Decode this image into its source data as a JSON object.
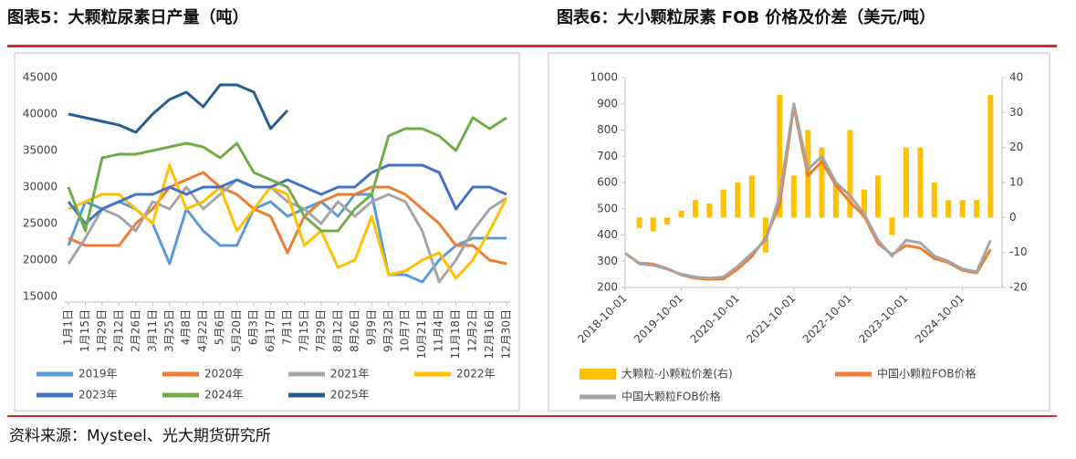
{
  "chart_data": [
    {
      "type": "line",
      "title": "图表5：大颗粒尿素日产量（吨）",
      "categories": [
        "1月1日",
        "1月15日",
        "1月29日",
        "2月12日",
        "2月26日",
        "3月11日",
        "3月25日",
        "4月8日",
        "4月22日",
        "5月6日",
        "5月20日",
        "6月3日",
        "6月17日",
        "7月1日",
        "7月15日",
        "7月29日",
        "8月12日",
        "8月26日",
        "9月9日",
        "9月23日",
        "10月7日",
        "10月21日",
        "11月4日",
        "11月18日",
        "12月2日",
        "12月16日",
        "12月30日"
      ],
      "ylim": [
        15000,
        45000
      ],
      "yticks": [
        15000,
        20000,
        25000,
        30000,
        35000,
        40000,
        45000
      ],
      "grid": false,
      "series": [
        {
          "name": "2019年",
          "color": "#5b9bd5",
          "values": [
            22000,
            28000,
            27000,
            28000,
            27000,
            25000,
            19500,
            27000,
            24000,
            22000,
            22000,
            27000,
            28000,
            26000,
            27000,
            28000,
            26000,
            29000,
            29000,
            18000,
            18000,
            17000,
            20000,
            22000,
            23000,
            23000,
            23000
          ]
        },
        {
          "name": "2020年",
          "color": "#ed7d31",
          "values": [
            23000,
            22000,
            22000,
            22000,
            25000,
            27000,
            30000,
            31000,
            32000,
            30000,
            29000,
            27000,
            26000,
            21000,
            26000,
            28000,
            29000,
            29000,
            30000,
            30000,
            29000,
            27000,
            25000,
            22000,
            22000,
            20000,
            19500
          ]
        },
        {
          "name": "2021年",
          "color": "#a5a5a5",
          "values": [
            19500,
            23000,
            27000,
            26000,
            24000,
            28000,
            27000,
            30000,
            27000,
            29000,
            31000,
            30000,
            30000,
            28000,
            27000,
            25000,
            28000,
            26000,
            28000,
            29000,
            28000,
            24000,
            17000,
            20000,
            24000,
            27000,
            28500
          ]
        },
        {
          "name": "2022年",
          "color": "#ffc000",
          "values": [
            27000,
            28000,
            29000,
            29000,
            27000,
            25000,
            33000,
            27000,
            28000,
            30000,
            24000,
            27000,
            30000,
            29000,
            22000,
            24000,
            19000,
            20000,
            26000,
            18000,
            18500,
            20000,
            21000,
            17500,
            20000,
            24000,
            28500
          ]
        },
        {
          "name": "2023年",
          "color": "#4472c4",
          "values": [
            28000,
            25000,
            27000,
            28000,
            29000,
            29000,
            30000,
            29000,
            30000,
            30000,
            31000,
            30000,
            30000,
            31000,
            30000,
            29000,
            30000,
            30000,
            32000,
            33000,
            33000,
            33000,
            32000,
            27000,
            30000,
            30000,
            29000
          ]
        },
        {
          "name": "2024年",
          "color": "#70ad47",
          "values": [
            30000,
            24000,
            34000,
            34500,
            34500,
            35000,
            35500,
            36000,
            35500,
            34000,
            36000,
            32000,
            31000,
            30000,
            26000,
            24000,
            24000,
            27000,
            29000,
            37000,
            38000,
            38000,
            37000,
            35000,
            39500,
            38000,
            39500
          ]
        },
        {
          "name": "2025年",
          "color": "#255e91",
          "values": [
            40000,
            39500,
            39000,
            38500,
            37500,
            40000,
            42000,
            43000,
            41000,
            44000,
            44000,
            43000,
            38000,
            40500,
            null,
            null,
            null,
            null,
            null,
            null,
            null,
            null,
            null,
            null,
            null,
            null,
            null
          ]
        }
      ]
    },
    {
      "type": "combo",
      "title": "图表6：大小颗粒尿素 FOB 价格及价差（美元/吨）",
      "x": [
        "2018-10-01",
        "2019-01-01",
        "2019-04-01",
        "2019-07-01",
        "2019-10-01",
        "2020-01-01",
        "2020-04-01",
        "2020-07-01",
        "2020-10-01",
        "2021-01-01",
        "2021-04-01",
        "2021-07-01",
        "2021-10-01",
        "2022-01-01",
        "2022-04-01",
        "2022-07-01",
        "2022-10-01",
        "2023-01-01",
        "2023-04-01",
        "2023-07-01",
        "2023-10-01",
        "2024-01-01",
        "2024-04-01",
        "2024-07-01",
        "2024-10-01",
        "2025-01-01",
        "2025-04-01"
      ],
      "xlim": [
        "2018-10-01",
        "2025-06-15"
      ],
      "xticks": [
        "2018-10-01",
        "2019-10-01",
        "2020-10-01",
        "2021-10-01",
        "2022-10-01",
        "2023-10-01",
        "2024-10-01"
      ],
      "ylim": [
        200,
        1000
      ],
      "yticks": [
        200,
        300,
        400,
        500,
        600,
        700,
        800,
        900,
        1000
      ],
      "y2lim": [
        -20,
        40
      ],
      "y2ticks": [
        -20,
        -10,
        0,
        10,
        20,
        30,
        40
      ],
      "series": [
        {
          "name": "大颗粒-小颗粒价差(右)",
          "kind": "bar",
          "axis": "y2",
          "color": "#ffc000",
          "values": [
            0,
            -3,
            -4,
            -2,
            2,
            5,
            4,
            8,
            10,
            12,
            -10,
            35,
            12,
            25,
            20,
            10,
            25,
            8,
            12,
            -5,
            20,
            20,
            10,
            5,
            5,
            5,
            35
          ]
        },
        {
          "name": "中国小颗粒FOB价格",
          "kind": "line",
          "color": "#ed7d31",
          "values": [
            330,
            293,
            289,
            272,
            248,
            235,
            231,
            232,
            270,
            318,
            390,
            515,
            888,
            625,
            680,
            590,
            525,
            472,
            368,
            325,
            360,
            350,
            310,
            295,
            265,
            255,
            345
          ]
        },
        {
          "name": "中国大颗粒FOB价格",
          "kind": "line",
          "color": "#a5a5a5",
          "values": [
            330,
            290,
            285,
            270,
            250,
            240,
            235,
            240,
            280,
            330,
            380,
            550,
            900,
            650,
            700,
            600,
            550,
            480,
            380,
            320,
            380,
            370,
            320,
            300,
            270,
            260,
            380
          ]
        }
      ]
    }
  ],
  "source": "资料来源：Mysteel、光大期货研究所"
}
